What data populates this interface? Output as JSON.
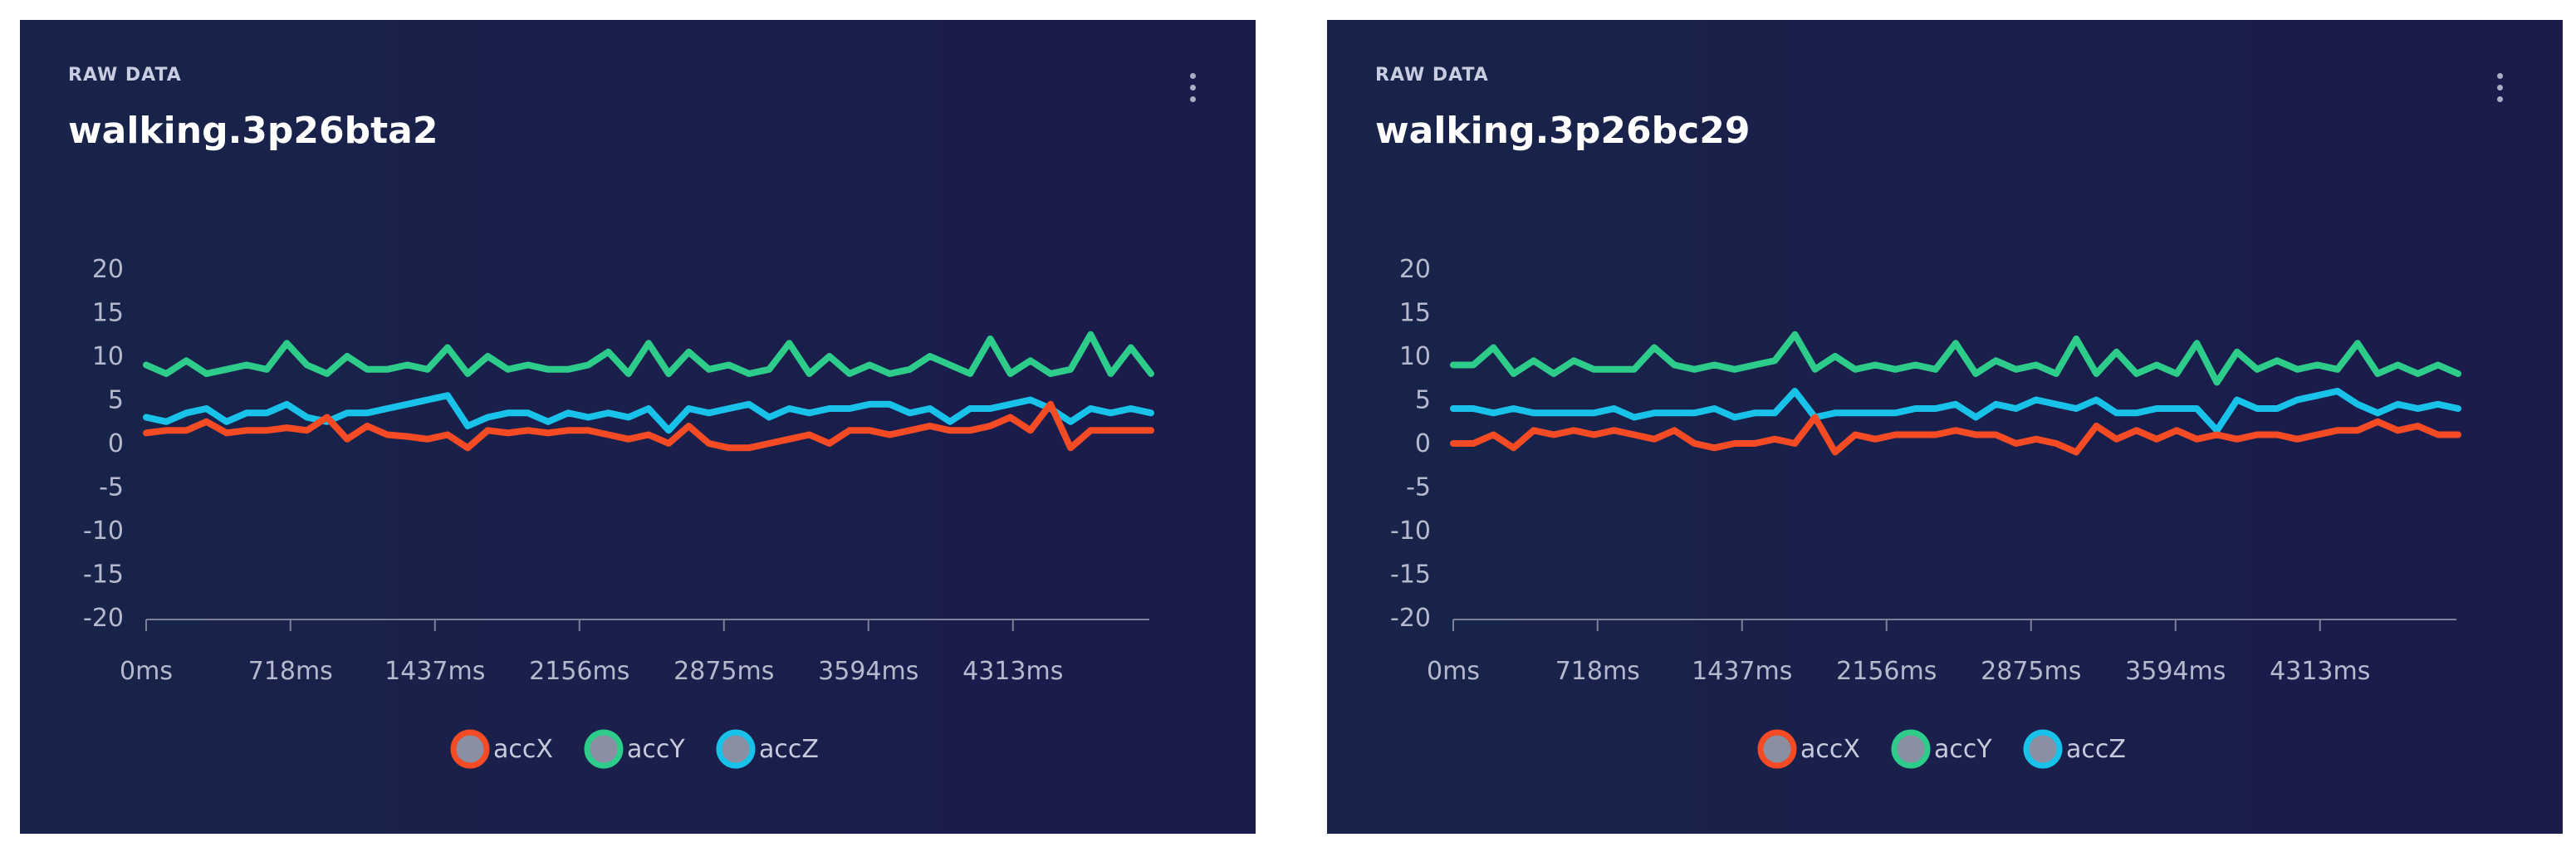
{
  "panels": [
    {
      "section_label": "RAW DATA",
      "title": "walking.3p26bta2",
      "chart_data": {
        "type": "line",
        "x_unit": "ms",
        "xlim": [
          0,
          5000
        ],
        "ylim": [
          -20,
          20
        ],
        "y_ticks": [
          20,
          15,
          10,
          5,
          0,
          -5,
          -10,
          -15,
          -20
        ],
        "x_ticks": [
          0,
          718,
          1437,
          2156,
          2875,
          3594,
          4313
        ],
        "x_tick_labels": [
          "0ms",
          "718ms",
          "1437ms",
          "2156ms",
          "2875ms",
          "3594ms",
          "4313ms"
        ],
        "x": [
          0,
          100,
          200,
          300,
          400,
          500,
          600,
          700,
          800,
          900,
          1000,
          1100,
          1200,
          1300,
          1400,
          1500,
          1600,
          1700,
          1800,
          1900,
          2000,
          2100,
          2200,
          2300,
          2400,
          2500,
          2600,
          2700,
          2800,
          2900,
          3000,
          3100,
          3200,
          3300,
          3400,
          3500,
          3600,
          3700,
          3800,
          3900,
          4000,
          4100,
          4200,
          4300,
          4400,
          4500,
          4600,
          4700,
          4800,
          4900,
          5000
        ],
        "legend_position": "bottom-center",
        "series": [
          {
            "name": "accX",
            "color": "#f44b25",
            "values": [
              1.2,
              1.5,
              1.5,
              2.5,
              1.2,
              1.5,
              1.5,
              1.8,
              1.5,
              3.0,
              0.5,
              2.0,
              1.0,
              0.8,
              0.5,
              1.0,
              -0.5,
              1.5,
              1.2,
              1.5,
              1.2,
              1.5,
              1.5,
              1.0,
              0.5,
              1.0,
              0.0,
              2.0,
              0.0,
              -0.5,
              -0.5,
              0.0,
              0.5,
              1.0,
              0.0,
              1.5,
              1.5,
              1.0,
              1.5,
              2.0,
              1.5,
              1.5,
              2.0,
              3.0,
              1.5,
              4.5,
              -0.5,
              1.5,
              1.5,
              1.5,
              1.5
            ]
          },
          {
            "name": "accY",
            "color": "#2ecc8a",
            "values": [
              9.0,
              8.0,
              9.5,
              8.0,
              8.5,
              9.0,
              8.5,
              11.5,
              9.0,
              8.0,
              10.0,
              8.5,
              8.5,
              9.0,
              8.5,
              11.0,
              8.0,
              10.0,
              8.5,
              9.0,
              8.5,
              8.5,
              9.0,
              10.5,
              8.0,
              11.5,
              8.0,
              10.5,
              8.5,
              9.0,
              8.0,
              8.5,
              11.5,
              8.0,
              10.0,
              8.0,
              9.0,
              8.0,
              8.5,
              10.0,
              9.0,
              8.0,
              12.0,
              8.0,
              9.5,
              8.0,
              8.5,
              12.5,
              8.0,
              11.0,
              8.0
            ]
          },
          {
            "name": "accZ",
            "color": "#18c2e8",
            "values": [
              3.0,
              2.5,
              3.5,
              4.0,
              2.5,
              3.5,
              3.5,
              4.5,
              3.0,
              2.5,
              3.5,
              3.5,
              4.0,
              4.5,
              5.0,
              5.5,
              2.0,
              3.0,
              3.5,
              3.5,
              2.5,
              3.5,
              3.0,
              3.5,
              3.0,
              4.0,
              1.5,
              4.0,
              3.5,
              4.0,
              4.5,
              3.0,
              4.0,
              3.5,
              4.0,
              4.0,
              4.5,
              4.5,
              3.5,
              4.0,
              2.5,
              4.0,
              4.0,
              4.5,
              5.0,
              4.0,
              2.5,
              4.0,
              3.5,
              4.0,
              3.5
            ]
          }
        ]
      }
    },
    {
      "section_label": "RAW DATA",
      "title": "walking.3p26bc29",
      "chart_data": {
        "type": "line",
        "x_unit": "ms",
        "xlim": [
          0,
          5000
        ],
        "ylim": [
          -20,
          20
        ],
        "y_ticks": [
          20,
          15,
          10,
          5,
          0,
          -5,
          -10,
          -15,
          -20
        ],
        "x_ticks": [
          0,
          718,
          1437,
          2156,
          2875,
          3594,
          4313
        ],
        "x_tick_labels": [
          "0ms",
          "718ms",
          "1437ms",
          "2156ms",
          "2875ms",
          "3594ms",
          "4313ms"
        ],
        "x": [
          0,
          100,
          200,
          300,
          400,
          500,
          600,
          700,
          800,
          900,
          1000,
          1100,
          1200,
          1300,
          1400,
          1500,
          1600,
          1700,
          1800,
          1900,
          2000,
          2100,
          2200,
          2300,
          2400,
          2500,
          2600,
          2700,
          2800,
          2900,
          3000,
          3100,
          3200,
          3300,
          3400,
          3500,
          3600,
          3700,
          3800,
          3900,
          4000,
          4100,
          4200,
          4300,
          4400,
          4500,
          4600,
          4700,
          4800,
          4900,
          5000
        ],
        "legend_position": "bottom-center",
        "series": [
          {
            "name": "accX",
            "color": "#f44b25",
            "values": [
              0.0,
              0.0,
              1.0,
              -0.5,
              1.5,
              1.0,
              1.5,
              1.0,
              1.5,
              1.0,
              0.5,
              1.5,
              0.0,
              -0.5,
              0.0,
              0.0,
              0.5,
              0.0,
              3.0,
              -1.0,
              1.0,
              0.5,
              1.0,
              1.0,
              1.0,
              1.5,
              1.0,
              1.0,
              0.0,
              0.5,
              0.0,
              -1.0,
              2.0,
              0.5,
              1.5,
              0.5,
              1.5,
              0.5,
              1.0,
              0.5,
              1.0,
              1.0,
              0.5,
              1.0,
              1.5,
              1.5,
              2.5,
              1.5,
              2.0,
              1.0,
              1.0
            ]
          },
          {
            "name": "accY",
            "color": "#2ecc8a",
            "values": [
              9.0,
              9.0,
              11.0,
              8.0,
              9.5,
              8.0,
              9.5,
              8.5,
              8.5,
              8.5,
              11.0,
              9.0,
              8.5,
              9.0,
              8.5,
              9.0,
              9.5,
              12.5,
              8.5,
              10.0,
              8.5,
              9.0,
              8.5,
              9.0,
              8.5,
              11.5,
              8.0,
              9.5,
              8.5,
              9.0,
              8.0,
              12.0,
              8.0,
              10.5,
              8.0,
              9.0,
              8.0,
              11.5,
              7.0,
              10.5,
              8.5,
              9.5,
              8.5,
              9.0,
              8.5,
              11.5,
              8.0,
              9.0,
              8.0,
              9.0,
              8.0
            ]
          },
          {
            "name": "accZ",
            "color": "#18c2e8",
            "values": [
              4.0,
              4.0,
              3.5,
              4.0,
              3.5,
              3.5,
              3.5,
              3.5,
              4.0,
              3.0,
              3.5,
              3.5,
              3.5,
              4.0,
              3.0,
              3.5,
              3.5,
              6.0,
              3.0,
              3.5,
              3.5,
              3.5,
              3.5,
              4.0,
              4.0,
              4.5,
              3.0,
              4.5,
              4.0,
              5.0,
              4.5,
              4.0,
              5.0,
              3.5,
              3.5,
              4.0,
              4.0,
              4.0,
              1.5,
              5.0,
              4.0,
              4.0,
              5.0,
              5.5,
              6.0,
              4.5,
              3.5,
              4.5,
              4.0,
              4.5,
              4.0
            ]
          }
        ]
      }
    }
  ]
}
